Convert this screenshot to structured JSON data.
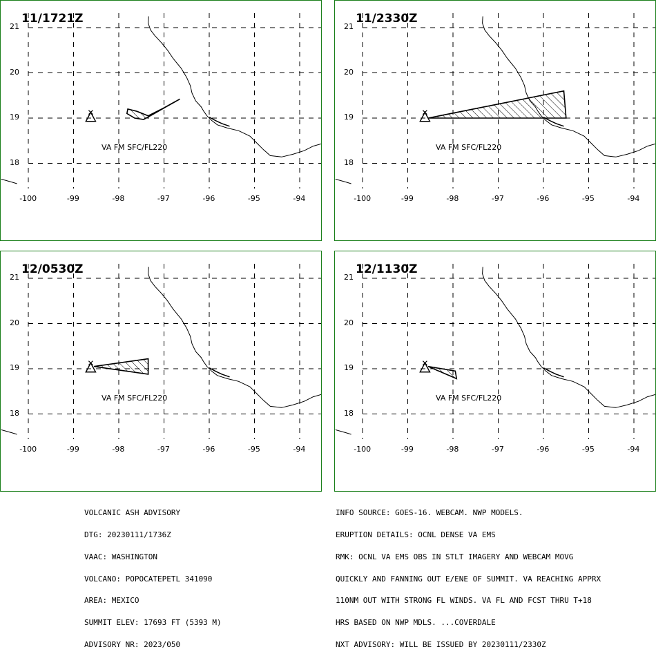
{
  "panels": [
    {
      "time_label": "11/1721Z",
      "area_label": "VA FM SFC/FL220",
      "ash_polygon": [
        [
          -97.8,
          19.2
        ],
        [
          -97.6,
          19.15
        ],
        [
          -97.35,
          19.05
        ],
        [
          -97.05,
          19.2
        ],
        [
          -96.65,
          19.42
        ],
        [
          -96.95,
          19.25
        ],
        [
          -97.25,
          19.08
        ],
        [
          -97.45,
          18.97
        ],
        [
          -97.65,
          19.0
        ],
        [
          -97.82,
          19.1
        ],
        [
          -97.8,
          19.2
        ]
      ]
    },
    {
      "time_label": "11/2330Z",
      "area_label": "VA FM SFC/FL220",
      "ash_polygon": [
        [
          -98.55,
          19.0
        ],
        [
          -95.55,
          19.6
        ],
        [
          -95.5,
          19.0
        ],
        [
          -98.55,
          19.0
        ]
      ]
    },
    {
      "time_label": "12/0530Z",
      "area_label": "VA FM SFC/FL220",
      "ash_polygon": [
        [
          -98.55,
          19.05
        ],
        [
          -97.35,
          19.22
        ],
        [
          -97.35,
          18.88
        ],
        [
          -98.55,
          19.05
        ]
      ]
    },
    {
      "time_label": "12/1130Z",
      "area_label": "VA FM SFC/FL220",
      "ash_polygon": [
        [
          -98.55,
          19.05
        ],
        [
          -97.95,
          18.95
        ],
        [
          -97.92,
          18.78
        ],
        [
          -98.55,
          19.05
        ]
      ]
    }
  ],
  "lat_labels": [
    "21",
    "20",
    "19",
    "18"
  ],
  "lon_labels": [
    "-100",
    "-99",
    "-98",
    "-97",
    "-96",
    "-95",
    "-94"
  ],
  "volcano_marker": {
    "icon": "volcano-triangle-icon",
    "lon": -98.62,
    "lat": 19.02
  },
  "colors": {
    "frame": "#1a7f1a",
    "ash": "#000000",
    "grid": "#000000"
  },
  "advisory_left": [
    "VOLCANIC ASH ADVISORY",
    "DTG: 20230111/1736Z",
    "VAAC: WASHINGTON",
    "VOLCANO: POPOCATEPETL 341090",
    "AREA: MEXICO",
    "SUMMIT ELEV: 17693 FT (5393 M)",
    "ADVISORY NR: 2023/050"
  ],
  "advisory_right": [
    "INFO SOURCE: GOES-16. WEBCAM. NWP MODELS.",
    "ERUPTION DETAILS: OCNL DENSE VA EMS",
    "RMK: OCNL VA EMS OBS IN STLT IMAGERY AND WEBCAM MOVG",
    "QUICKLY AND FANNING OUT E/ENE OF SUMMIT. VA REACHING APPRX",
    "110NM OUT WITH STRONG FL WINDS. VA FL AND FCST THRU T+18",
    "HRS BASED ON NWP MDLS. ...COVERDALE",
    "NXT ADVISORY: WILL BE ISSUED BY 20230111/2330Z"
  ]
}
